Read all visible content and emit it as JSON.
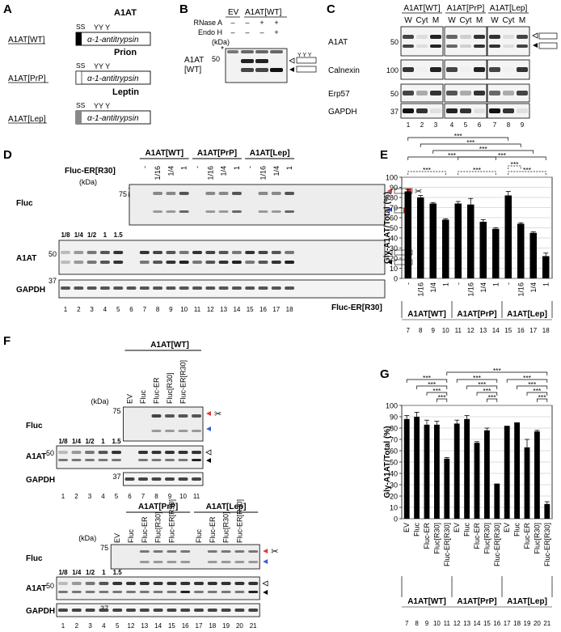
{
  "panels": {
    "A": {
      "letter": "A",
      "constructs": [
        {
          "name": "A1AT[WT]",
          "signal_label": "A1AT",
          "gene": "α-1-antitrypsin",
          "ss": "SS",
          "glycans": "YY      Y"
        },
        {
          "name": "A1AT[PrP]",
          "signal_label": "Prion",
          "gene": "α-1-antitrypsin",
          "ss": "SS",
          "glycans": "YY      Y"
        },
        {
          "name": "A1AT[Lep]",
          "signal_label": "Leptin",
          "gene": "α-1-antitrypsin",
          "ss": "SS",
          "glycans": "YY      Y"
        }
      ]
    },
    "B": {
      "letter": "B",
      "header_ev": "EV",
      "header_group": "A1AT[WT]",
      "rows": [
        {
          "label": "RNase A",
          "values": [
            "–",
            "–",
            "+",
            "+"
          ]
        },
        {
          "label": "Endo H",
          "values": [
            "–",
            "–",
            "–",
            "+"
          ]
        }
      ],
      "kda": "(kDa)",
      "mw": "50",
      "star": "*",
      "band_label": "A1AT",
      "band_label2": "[WT]"
    },
    "C": {
      "letter": "C",
      "groups": [
        "A1AT[WT]",
        "A1AT[PrP]",
        "A1AT[Lep]"
      ],
      "fractions": [
        "W",
        "Cyt",
        "M"
      ],
      "blots": [
        {
          "label": "A1AT",
          "mw": "50"
        },
        {
          "label": "Calnexin",
          "mw": "100"
        },
        {
          "label": "Erp57",
          "mw": "50"
        },
        {
          "label": "GAPDH",
          "mw": "37"
        }
      ],
      "lanes": [
        "1",
        "2",
        "3",
        "4",
        "5",
        "6",
        "7",
        "8",
        "9"
      ]
    },
    "D": {
      "letter": "D",
      "groups": [
        "A1AT[WT]",
        "A1AT[PrP]",
        "A1AT[Lep]"
      ],
      "treat_label": "Fluc-ER[R30]",
      "ev": "EV",
      "doses": [
        "-",
        "1/16",
        "1/4",
        "1"
      ],
      "kda": "(kDa)",
      "dilutions": [
        "1/8",
        "1/4",
        "1/2",
        "1",
        "1.5"
      ],
      "blots": [
        {
          "label": "Fluc",
          "mw": "75"
        },
        {
          "label": "A1AT",
          "mw": "50"
        },
        {
          "label": "GAPDH",
          "mw": "37"
        }
      ],
      "lanes": [
        "1",
        "2",
        "3",
        "4",
        "5",
        "6",
        "7",
        "8",
        "9",
        "10",
        "11",
        "12",
        "13",
        "14",
        "15",
        "16",
        "17",
        "18"
      ]
    },
    "E": {
      "letter": "E",
      "sig": "***",
      "xlabel_row": "Fluc-ER[R30]",
      "lanes": [
        "7",
        "8",
        "9",
        "10",
        "11",
        "12",
        "13",
        "14",
        "15",
        "16",
        "17",
        "18"
      ]
    },
    "F": {
      "letter": "F",
      "top_group": "A1AT[WT]",
      "bottom_groups": [
        "A1AT[PrP]",
        "A1AT[Lep]"
      ],
      "columns": [
        "EV",
        "Fluc",
        "Fluc-ER",
        "Fluc[R30]",
        "Fluc-ER[R30]"
      ],
      "kda": "(kDa)",
      "dilutions": [
        "1/8",
        "1/4",
        "1/2",
        "1",
        "1.5"
      ],
      "blots": [
        {
          "label": "Fluc",
          "mw": "75"
        },
        {
          "label": "A1AT",
          "mw": "50"
        },
        {
          "label": "GAPDH",
          "mw": "37"
        }
      ],
      "top_lanes": [
        "1",
        "2",
        "3",
        "4",
        "5",
        "6",
        "7",
        "8",
        "9",
        "10",
        "11"
      ],
      "bottom_lanes": [
        "1",
        "2",
        "3",
        "4",
        "5",
        "12",
        "13",
        "14",
        "15",
        "16",
        "17",
        "18",
        "19",
        "20",
        "21"
      ]
    },
    "G": {
      "letter": "G",
      "sig": "***",
      "lanes": [
        "7",
        "8",
        "9",
        "10",
        "11",
        "12",
        "13",
        "14",
        "15",
        "16",
        "17",
        "18",
        "19",
        "20",
        "21"
      ]
    }
  },
  "chart_data": [
    {
      "type": "bar",
      "panel": "E",
      "ylabel": "Gly-A1AT/Total (%)",
      "ylim": [
        0,
        100
      ],
      "yticks": [
        "0",
        "10",
        "20",
        "30",
        "40",
        "50",
        "60",
        "70",
        "80",
        "90",
        "100"
      ],
      "categories": [
        "-",
        "1/16",
        "1/4",
        "1",
        "-",
        "1/16",
        "1/4",
        "1",
        "-",
        "1/16",
        "1/4",
        "1"
      ],
      "groups": [
        "A1AT[WT]",
        "A1AT[PrP]",
        "A1AT[Lep]"
      ],
      "values": [
        86,
        80,
        74,
        58,
        74,
        73,
        56,
        49,
        82,
        54,
        45,
        22
      ],
      "errors": [
        2,
        2,
        1,
        1,
        2,
        6,
        2,
        1,
        4,
        1,
        1,
        3
      ]
    },
    {
      "type": "bar",
      "panel": "G",
      "ylabel": "Gly-A1AT/Total (%)",
      "ylim": [
        0,
        100
      ],
      "yticks": [
        "0",
        "10",
        "20",
        "30",
        "40",
        "50",
        "60",
        "70",
        "80",
        "90",
        "100"
      ],
      "categories": [
        "EV",
        "Fluc",
        "Fluc-ER",
        "Fluc[R30]",
        "Fluc-ER[R30]",
        "EV",
        "Fluc",
        "Fluc-ER",
        "Fluc[R30]",
        "Fluc-ER[R30]",
        "EV",
        "Fluc",
        "Fluc-ER",
        "Fluc[R30]",
        "Fluc-ER[R30]"
      ],
      "groups": [
        "A1AT[WT]",
        "A1AT[PrP]",
        "A1AT[Lep]"
      ],
      "values": [
        88,
        90,
        83,
        83,
        53,
        84,
        88,
        67,
        78,
        31,
        82,
        85,
        63,
        77,
        13
      ],
      "errors": [
        3,
        4,
        4,
        3,
        1,
        3,
        3,
        1,
        2,
        0,
        0,
        0,
        7,
        1,
        2
      ]
    }
  ]
}
